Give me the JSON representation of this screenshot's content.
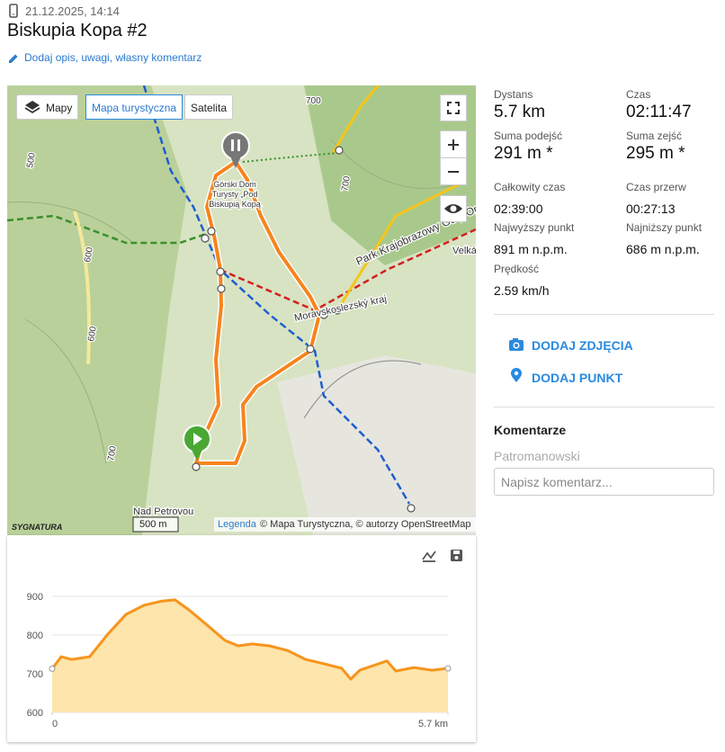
{
  "header": {
    "date": "21.12.2025, 14:14",
    "title": "Biskupia Kopa #2",
    "edit_link": "Dodaj opis, uwagi, własny komentarz"
  },
  "map": {
    "layer_buttons": [
      "Mapy",
      "Mapa turystyczna",
      "Satelita"
    ],
    "labels": [
      "700",
      "500",
      "700",
      "600",
      "600",
      "700",
      "Velká",
      "Górski Dom",
      "Turysty „Pod",
      "Biskupią Kopą",
      "Park Krajobrazowy Góry Opawskie",
      "Moravskoslezský kraj",
      "Nad Petrovou"
    ],
    "scale": "500 m",
    "logo": "SYGNATURA",
    "attribution_link": "Legenda",
    "attribution": "© Mapa Turystyczna, © autorzy OpenStreetMap"
  },
  "stats": [
    {
      "label": "Dystans",
      "value": "5.7 km"
    },
    {
      "label": "Czas",
      "value": "02:11:47"
    },
    {
      "label": "Suma podejść",
      "value": "291 m *"
    },
    {
      "label": "Suma zejść",
      "value": "295 m *"
    },
    {
      "label": "Całkowity czas",
      "value": "02:39:00"
    },
    {
      "label": "Czas przerw",
      "value": "00:27:13"
    },
    {
      "label": "Najwyższy punkt",
      "value": "891 m n.p.m."
    },
    {
      "label": "Najniższy punkt",
      "value": "686 m n.p.m."
    },
    {
      "label": "Prędkość",
      "value": "2.59 km/h"
    }
  ],
  "actions": [
    "DODAJ ZDJĘCIA",
    "DODAJ PUNKT"
  ],
  "comments": {
    "title": "Komentarze",
    "user": "Patromanowski",
    "placeholder": "Napisz komentarz..."
  },
  "chart_data": {
    "type": "area",
    "x": [
      0,
      0.13,
      0.28,
      0.54,
      0.8,
      1.06,
      1.32,
      1.58,
      1.77,
      1.97,
      2.23,
      2.49,
      2.68,
      2.88,
      3.13,
      3.39,
      3.65,
      3.91,
      4.17,
      4.3,
      4.43,
      4.62,
      4.82,
      4.95,
      5.21,
      5.47,
      5.7
    ],
    "values": [
      713,
      744,
      737,
      744,
      802,
      853,
      877,
      888,
      891,
      865,
      826,
      786,
      772,
      777,
      772,
      760,
      737,
      726,
      714,
      686,
      709,
      721,
      733,
      707,
      716,
      709,
      714
    ],
    "color": "#f7941d",
    "xlim": [
      0,
      5.7
    ],
    "ylim": [
      600,
      900
    ],
    "yticks": [
      600,
      700,
      800,
      900
    ],
    "xticks": [
      0,
      {
        "value": 5.7,
        "label": "5.7 km"
      }
    ],
    "grid": true
  }
}
